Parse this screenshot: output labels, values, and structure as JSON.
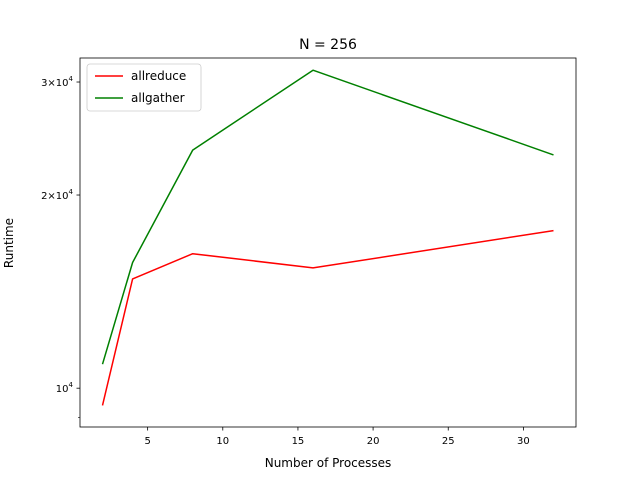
{
  "chart_data": {
    "type": "line",
    "title": "N = 256",
    "xlabel": "Number of Processes",
    "ylabel": "Runtime",
    "xlim": [
      0.5,
      33.5
    ],
    "ylim": [
      8700,
      32700
    ],
    "yscale": "log",
    "grid": false,
    "legend": "top-left",
    "x_ticks": [
      5,
      10,
      15,
      20,
      25,
      30
    ],
    "y_ticks": [
      {
        "value": 10000,
        "mant": "",
        "exp": "4"
      },
      {
        "value": 20000,
        "mant": "2",
        "exp": "4"
      },
      {
        "value": 30000,
        "mant": "3",
        "exp": "4"
      }
    ],
    "series": [
      {
        "name": "allreduce",
        "color": "#ff0000",
        "x": [
          2,
          4,
          8,
          16,
          32
        ],
        "y": [
          9400,
          14800,
          16200,
          15400,
          17600
        ]
      },
      {
        "name": "allgather",
        "color": "#008000",
        "x": [
          2,
          4,
          8,
          16,
          32
        ],
        "y": [
          10900,
          15700,
          23500,
          31300,
          23100
        ]
      }
    ]
  }
}
